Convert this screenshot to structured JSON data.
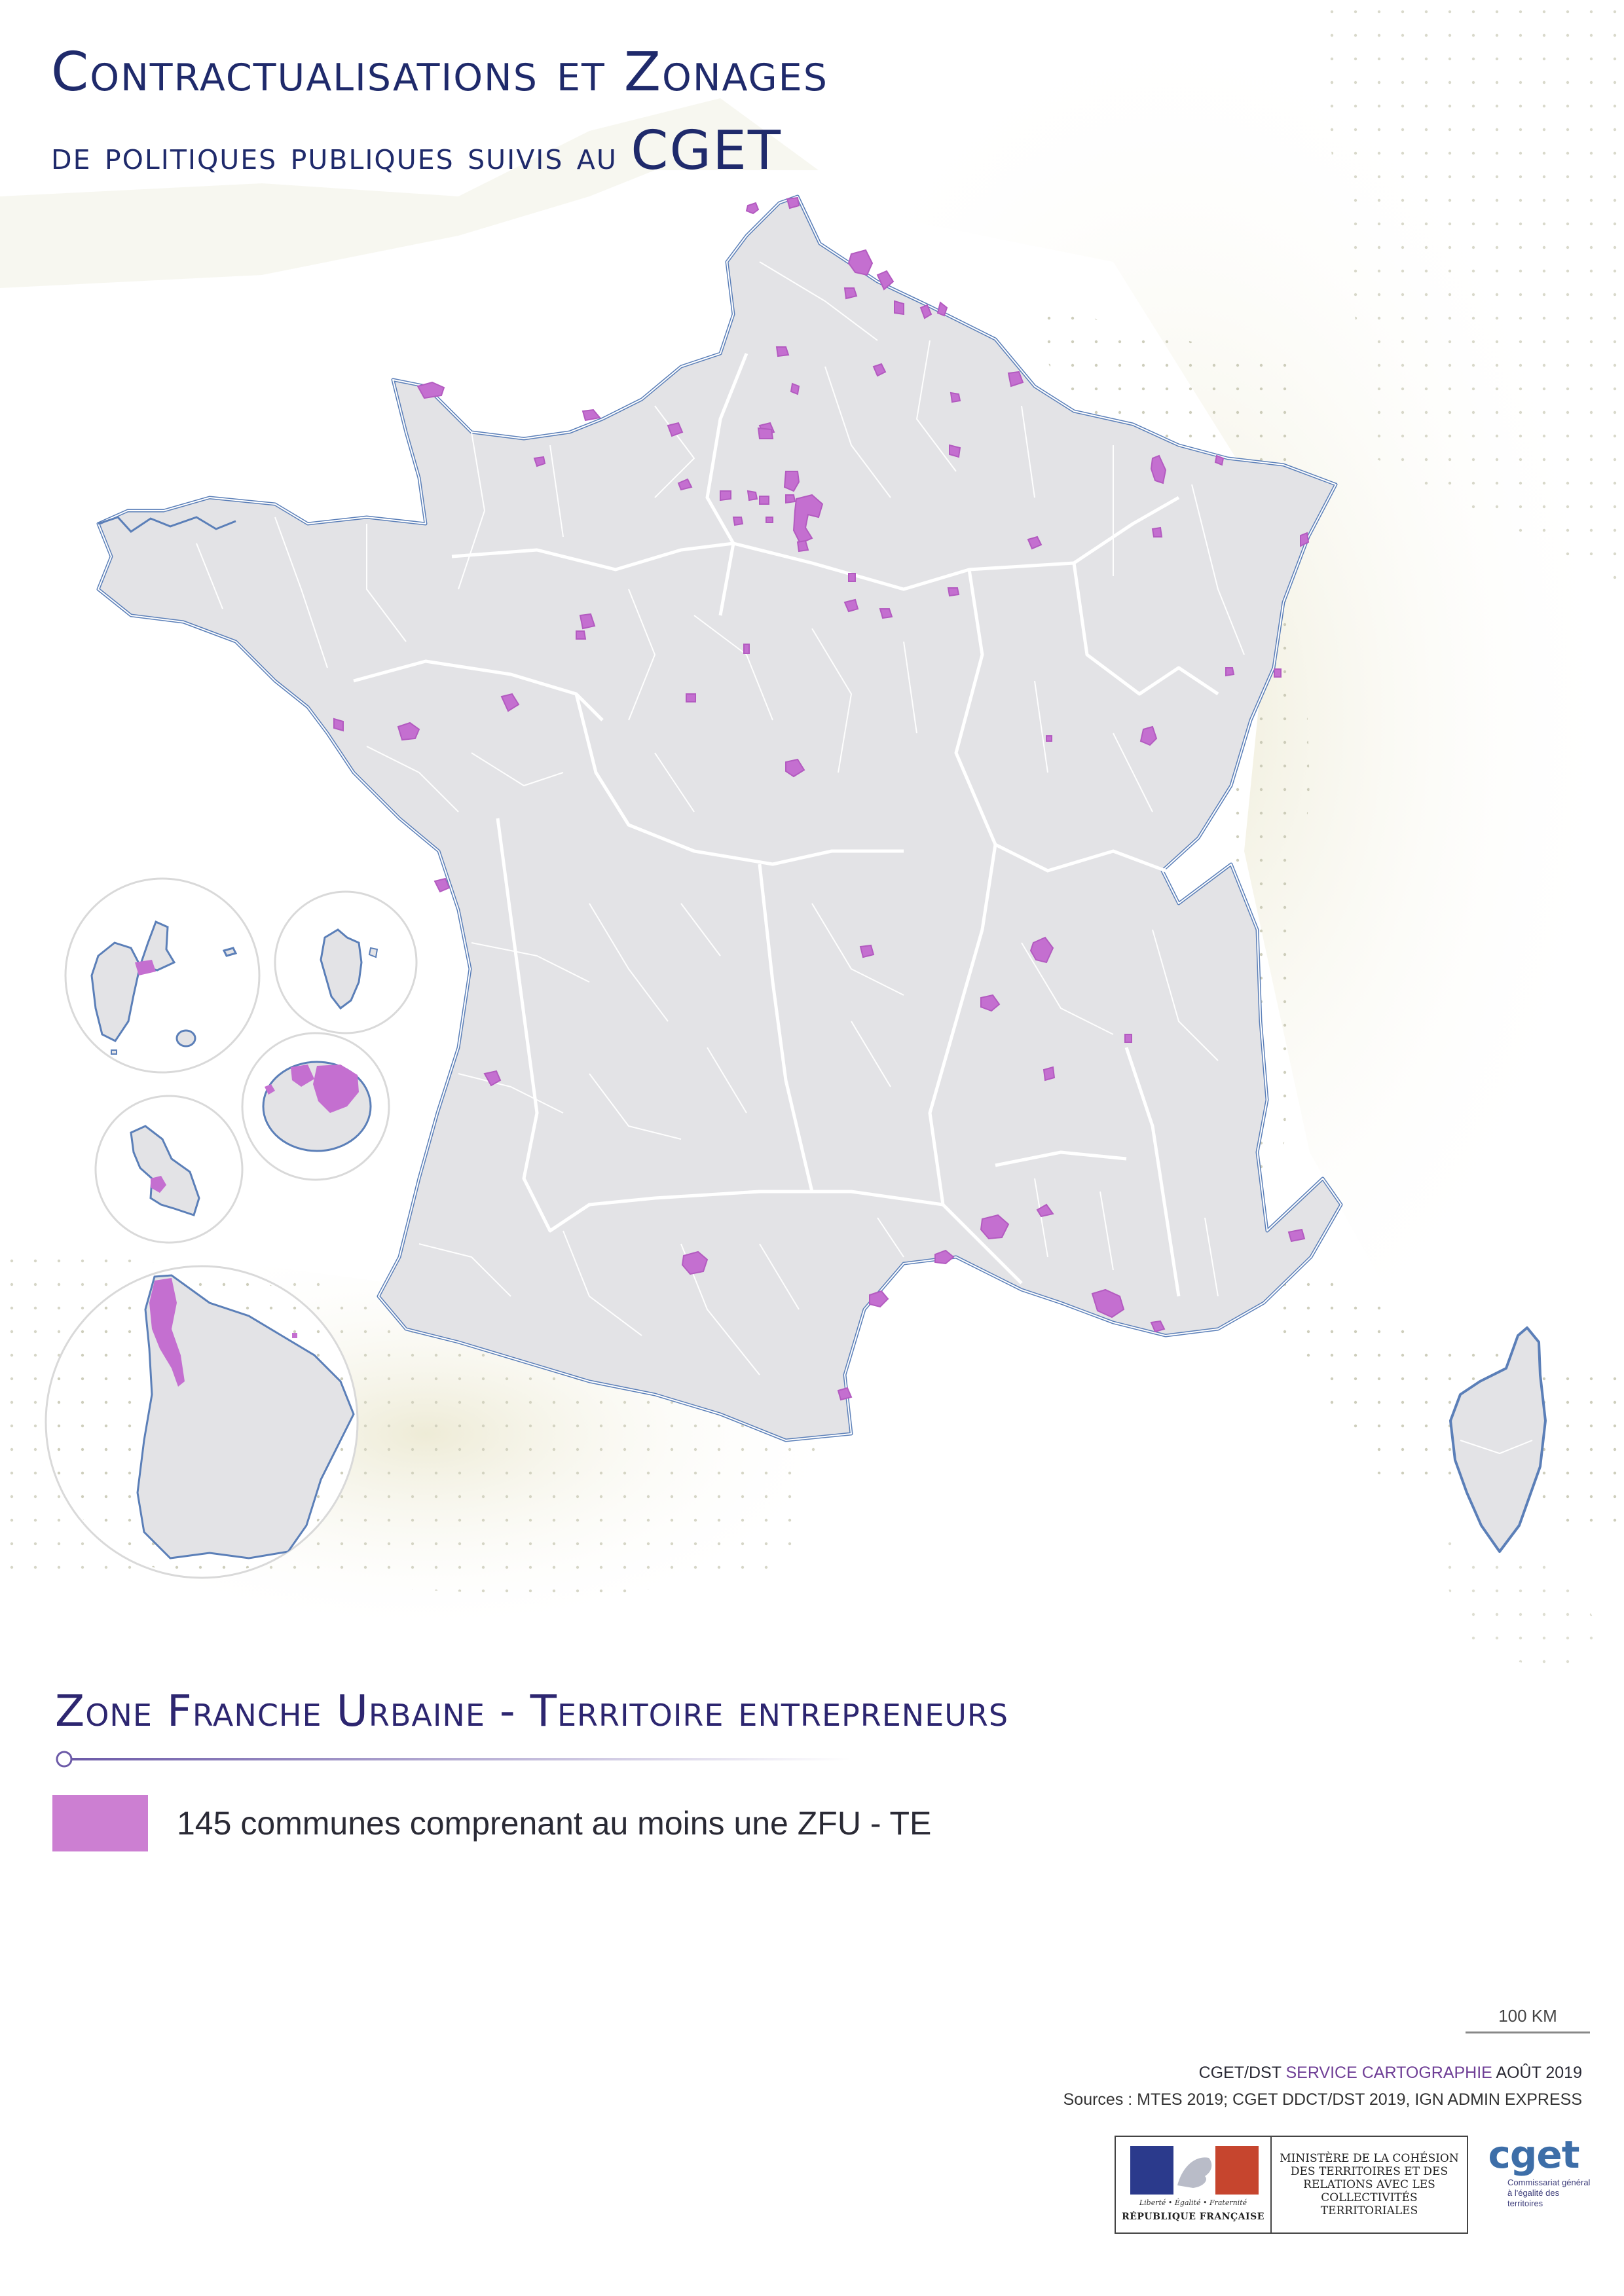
{
  "title": {
    "line1": "Contractualisations et Zonages",
    "line2_prefix": "de politiques publiques suivis au",
    "line2_strong": "CGET"
  },
  "legend": {
    "title": "Zone Franche Urbaine - Territoire entrepreneurs",
    "item_label": "145 communes comprenant au moins une ZFU - TE",
    "item_color": "#cc7fd2"
  },
  "scale": {
    "label": "100 KM"
  },
  "credits": {
    "org": "CGET/DST",
    "service": "SERVICE CARTOGRAPHIE",
    "date": "AOÛT 2019",
    "sources": "Sources : MTES 2019; CGET DDCT/DST 2019, IGN ADMIN EXPRESS"
  },
  "logos": {
    "rf_motto": "Liberté • Égalité • Fraternité",
    "rf_name": "RÉPUBLIQUE FRANÇAISE",
    "ministry": "MINISTÈRE DE LA COHÉSION DES TERRITOIRES ET DES RELATIONS AVEC LES COLLECTIVITÉS TERRITORIALES",
    "cget": "cget",
    "cget_sub": "Commissariat général à l'égalité des territoires"
  },
  "colors": {
    "land": "#e3e3e6",
    "coast": "#5b7fb8",
    "zone": "#c46fd0",
    "title": "#1f2a6b"
  }
}
